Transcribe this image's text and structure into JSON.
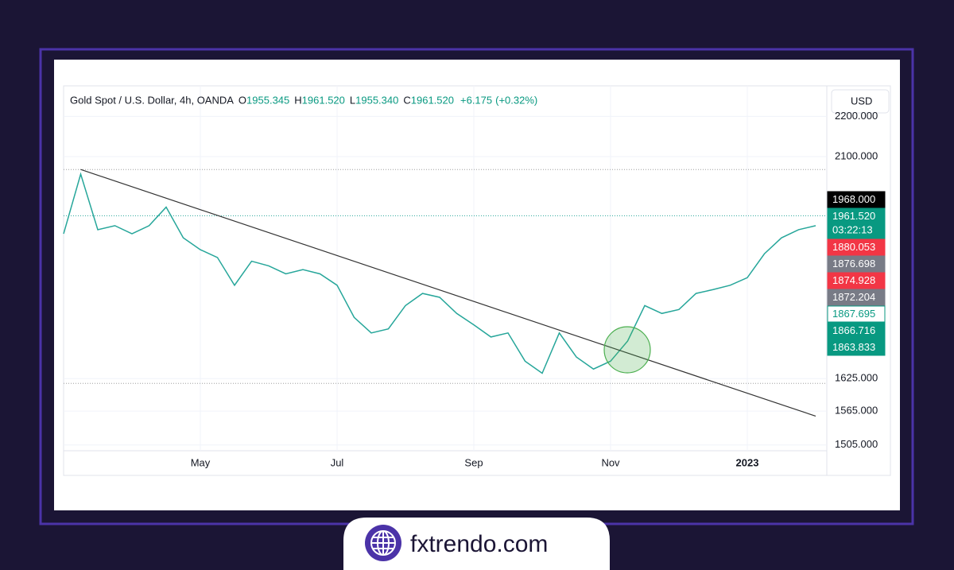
{
  "chart_data": {
    "type": "line",
    "symbol": "Gold Spot / U.S. Dollar, 4h, OANDA",
    "ohlc_keys": [
      "O",
      "H",
      "L",
      "C"
    ],
    "ohlc": [
      1955.345,
      {
        "value": 1961.52,
        "label": "1961.520"
      },
      {
        "value": 1955.34,
        "label": "1955.340"
      },
      {
        "value": 1961.52,
        "label": "1961.520"
      }
    ],
    "change": {
      "value": 6.175,
      "label": "+6.175"
    },
    "change_percent": {
      "value": 0.32,
      "label": "(+0.32%)"
    },
    "currency": "USD",
    "categories": [
      null,
      null,
      null,
      null,
      null,
      null,
      null,
      null,
      "May",
      null,
      null,
      null,
      null,
      null,
      null,
      null,
      "Jul",
      null,
      null,
      null,
      null,
      null,
      null,
      null,
      "Sep",
      null,
      null,
      null,
      null,
      null,
      null,
      null,
      "Nov",
      null,
      null,
      null,
      null,
      null,
      null,
      null,
      "2023",
      null,
      null,
      null,
      null
    ],
    "series": [
      {
        "color": "#26a69a",
        "values": [
          1921,
          2058,
          1930,
          1939,
          1921,
          1939,
          1981,
          1912,
          1886,
          1869,
          1810,
          1861,
          1851,
          1834,
          1843,
          1834,
          1810,
          1744,
          1713,
          1721,
          1768,
          1793,
          1785,
          1752,
          1729,
          1705,
          1713,
          1658,
          1635,
          1713,
          1666,
          1643,
          1658,
          1697,
          1768,
          1752,
          1760,
          1793,
          1801,
          1810,
          1826,
          1877,
          1912,
          1930,
          1939
        ]
      }
    ],
    "log_scale": true,
    "ylim": [
      1453,
      2279
    ],
    "yticks": [
      {
        "value": 1505,
        "label": "1505.000"
      },
      {
        "value": 1565,
        "label": "1565.000"
      },
      {
        "value": 1625,
        "label": "1625.000"
      },
      {
        "value": 2100,
        "label": "2100.000"
      },
      {
        "value": 2200,
        "label": "2200.000"
      }
    ],
    "grid": true,
    "horizontal_lines": [
      {
        "value": 2069,
        "color": "#9e9e9e"
      },
      {
        "value": 1616,
        "color": "#9e9e9e"
      },
      {
        "value": 1961.52,
        "color": "#26a69a"
      }
    ],
    "trendline": {
      "start_index": 1,
      "end_index": 44,
      "values": [
        2069,
        1556
      ],
      "color": "#333333"
    },
    "price_labels": [
      {
        "value": 1968,
        "label": "1968.000",
        "bg": "#000000",
        "fg": "#ffffff"
      },
      {
        "value": 1961.52,
        "label": "1961.520",
        "sublabel": "03:22:13",
        "bg": "#089981",
        "fg": "#ffffff"
      },
      {
        "value": 1880.053,
        "label": "1880.053",
        "bg": "#f23645",
        "fg": "#ffffff"
      },
      {
        "value": 1876.698,
        "label": "1876.698",
        "bg": "#787b86",
        "fg": "#ffffff"
      },
      {
        "value": 1874.928,
        "label": "1874.928",
        "bg": "#f23645",
        "fg": "#ffffff"
      },
      {
        "value": 1872.204,
        "label": "1872.204",
        "bg": "#787b86",
        "fg": "#ffffff"
      },
      {
        "value": 1867.695,
        "label": "1867.695",
        "bg": "#ffffff",
        "fg": "#089981"
      },
      {
        "value": 1866.716,
        "label": "1866.716",
        "bg": "#089981",
        "fg": "#ffffff"
      },
      {
        "value": 1863.833,
        "label": "1863.833",
        "bg": "#089981",
        "fg": "#ffffff"
      }
    ]
  },
  "brand": "fxtrendo.com"
}
